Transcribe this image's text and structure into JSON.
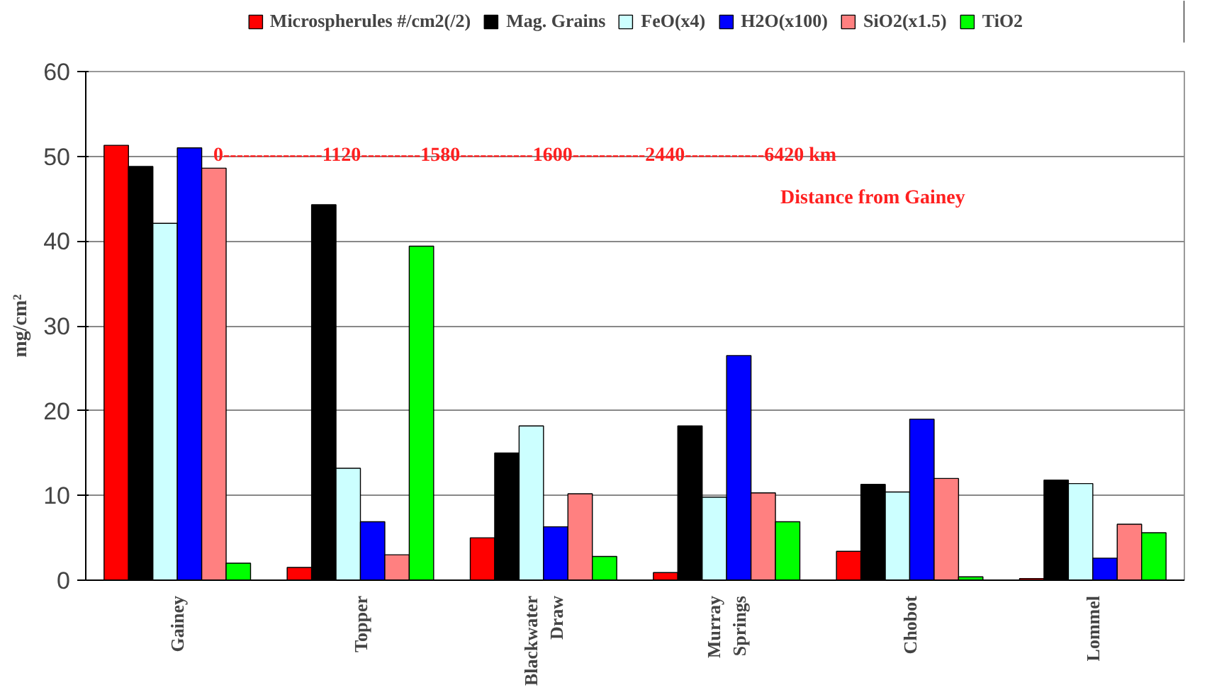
{
  "chart_data": {
    "type": "bar",
    "ylabel": "mg/cm²",
    "categories": [
      "Gainey",
      "Topper",
      "Blackwater\nDraw",
      "Murray\nSprings",
      "Chobot",
      "Lommel"
    ],
    "series": [
      {
        "name": "Microspherules #/cm2(/2)",
        "color": "#ff0000",
        "values": [
          51.3,
          1.5,
          5.0,
          0.9,
          3.4,
          0.2
        ]
      },
      {
        "name": "Mag. Grains",
        "color": "#000000",
        "values": [
          48.8,
          44.3,
          15.0,
          18.2,
          11.3,
          11.8
        ]
      },
      {
        "name": "FeO(x4)",
        "color": "#ccffff",
        "values": [
          42.1,
          13.2,
          18.2,
          9.8,
          10.4,
          11.4
        ]
      },
      {
        "name": "H2O(x100)",
        "color": "#0000ff",
        "values": [
          51.0,
          6.9,
          6.3,
          26.5,
          19.0,
          2.6
        ]
      },
      {
        "name": "SiO2(x1.5)",
        "color": "#ff8080",
        "values": [
          48.6,
          3.0,
          10.2,
          10.3,
          12.0,
          6.6
        ]
      },
      {
        "name": "TiO2",
        "color": "#00ff00",
        "values": [
          2.0,
          39.4,
          2.8,
          6.9,
          0.4,
          5.6
        ]
      }
    ],
    "ylim": [
      0,
      60
    ],
    "yticks": [
      0,
      10,
      20,
      30,
      40,
      50,
      60
    ],
    "grid": "y",
    "legend": "top",
    "annotations": [
      "0---------------1120---------1580-----------1600-----------2440------------6420 km",
      "Distance from Gainey"
    ]
  }
}
